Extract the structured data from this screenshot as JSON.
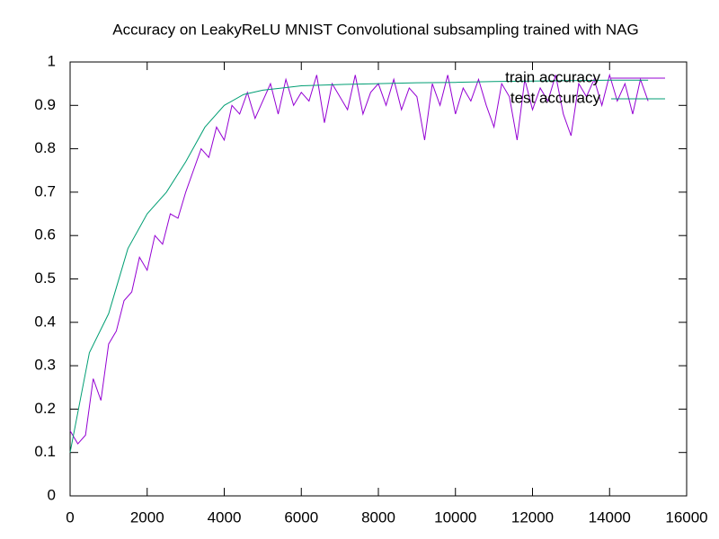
{
  "chart_data": {
    "type": "line",
    "title": "Accuracy on LeakyReLU MNIST Convolutional subsampling trained with NAG",
    "xlim": [
      0,
      16000
    ],
    "xticks": [
      0,
      2000,
      4000,
      6000,
      8000,
      10000,
      12000,
      14000,
      16000
    ],
    "ylim": [
      0,
      1
    ],
    "yticks": [
      0,
      0.1,
      0.2,
      0.3,
      0.4,
      0.5,
      0.6,
      0.7,
      0.8,
      0.9,
      1
    ],
    "grid": false,
    "legend": "top-right",
    "series": [
      {
        "name": "train accuracy",
        "color": "#9400d3",
        "x": [
          0,
          200,
          400,
          600,
          800,
          1000,
          1200,
          1400,
          1600,
          1800,
          2000,
          2200,
          2400,
          2600,
          2800,
          3000,
          3200,
          3400,
          3600,
          3800,
          4000,
          4200,
          4400,
          4600,
          4800,
          5000,
          5200,
          5400,
          5600,
          5800,
          6000,
          6200,
          6400,
          6600,
          6800,
          7000,
          7200,
          7400,
          7600,
          7800,
          8000,
          8200,
          8400,
          8600,
          8800,
          9000,
          9200,
          9400,
          9600,
          9800,
          10000,
          10200,
          10400,
          10600,
          10800,
          11000,
          11200,
          11400,
          11600,
          11800,
          12000,
          12200,
          12400,
          12600,
          12800,
          13000,
          13200,
          13400,
          13600,
          13800,
          14000,
          14200,
          14400,
          14600,
          14800,
          15000
        ],
        "values": [
          0.15,
          0.12,
          0.14,
          0.27,
          0.22,
          0.35,
          0.38,
          0.45,
          0.47,
          0.55,
          0.52,
          0.6,
          0.58,
          0.65,
          0.64,
          0.7,
          0.75,
          0.8,
          0.78,
          0.85,
          0.82,
          0.9,
          0.88,
          0.93,
          0.87,
          0.91,
          0.95,
          0.88,
          0.96,
          0.9,
          0.93,
          0.91,
          0.97,
          0.86,
          0.95,
          0.92,
          0.89,
          0.97,
          0.88,
          0.93,
          0.95,
          0.9,
          0.96,
          0.89,
          0.94,
          0.92,
          0.82,
          0.95,
          0.9,
          0.97,
          0.88,
          0.94,
          0.91,
          0.96,
          0.9,
          0.85,
          0.95,
          0.92,
          0.82,
          0.96,
          0.89,
          0.94,
          0.91,
          0.97,
          0.88,
          0.83,
          0.95,
          0.92,
          0.96,
          0.9,
          0.97,
          0.91,
          0.95,
          0.88,
          0.96,
          0.91
        ]
      },
      {
        "name": "test accuracy",
        "color": "#009e73",
        "x": [
          0,
          500,
          1000,
          1500,
          2000,
          2500,
          3000,
          3500,
          4000,
          4500,
          5000,
          5500,
          6000,
          7000,
          8000,
          9000,
          10000,
          11000,
          12000,
          13000,
          14000,
          15000
        ],
        "values": [
          0.1,
          0.33,
          0.42,
          0.57,
          0.65,
          0.7,
          0.77,
          0.85,
          0.9,
          0.925,
          0.935,
          0.94,
          0.945,
          0.948,
          0.95,
          0.952,
          0.953,
          0.955,
          0.956,
          0.957,
          0.958,
          0.958
        ]
      }
    ]
  }
}
